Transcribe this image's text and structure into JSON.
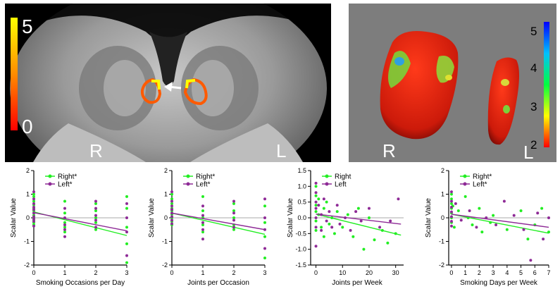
{
  "mri_panel": {
    "colorbar": {
      "max_label": "5",
      "min_label": "0",
      "colors": [
        "#ffff00",
        "#ff8c00",
        "#ff0000"
      ]
    },
    "side_labels": {
      "right": "R",
      "left": "L"
    }
  },
  "render_panel": {
    "colorbar": {
      "ticks": [
        "5",
        "4",
        "3",
        "2"
      ],
      "colors": [
        "#0000ff",
        "#00c0ff",
        "#00ff40",
        "#ffff00",
        "#ff0000"
      ]
    },
    "side_labels": {
      "right": "R",
      "left": "L"
    }
  },
  "series_colors": {
    "right": "#22ee22",
    "left": "#8e2a96"
  },
  "chart_data": [
    {
      "type": "scatter",
      "xlabel": "Smoking Occasions per Day",
      "ylabel": "Scalar Value",
      "xlim": [
        0,
        3
      ],
      "ylim": [
        -2,
        2
      ],
      "xticks": [
        0,
        1,
        2,
        3
      ],
      "yticks": [
        -2,
        -1,
        0,
        1,
        2
      ],
      "xticklabels": [
        "0",
        "1",
        "2",
        "3"
      ],
      "yticklabels": [
        "-2",
        "-1",
        "0",
        "1",
        "2"
      ],
      "legend": [
        "Right*",
        "Left*"
      ],
      "series": [
        {
          "name": "Right*",
          "points": [
            [
              0,
              1.0
            ],
            [
              0,
              0.9
            ],
            [
              0,
              0.7
            ],
            [
              0,
              0.55
            ],
            [
              0,
              0.4
            ],
            [
              0,
              0.3
            ],
            [
              0,
              0.2
            ],
            [
              0,
              0.1
            ],
            [
              0,
              0.0
            ],
            [
              0,
              -0.1
            ],
            [
              0,
              -0.2
            ],
            [
              0,
              -0.3
            ],
            [
              1,
              0.7
            ],
            [
              1,
              0.2
            ],
            [
              1,
              -0.2
            ],
            [
              1,
              -0.4
            ],
            [
              1,
              -0.6
            ],
            [
              2,
              0.6
            ],
            [
              2,
              0.3
            ],
            [
              2,
              0.0
            ],
            [
              2,
              -0.2
            ],
            [
              2,
              -0.5
            ],
            [
              3,
              0.9
            ],
            [
              3,
              0.4
            ],
            [
              3,
              -0.4
            ],
            [
              3,
              -1.1
            ],
            [
              3,
              -1.9
            ]
          ],
          "fit": [
            [
              0,
              0.25
            ],
            [
              3,
              -0.75
            ]
          ]
        },
        {
          "name": "Left*",
          "points": [
            [
              0,
              1.1
            ],
            [
              0,
              0.8
            ],
            [
              0,
              0.6
            ],
            [
              0,
              0.45
            ],
            [
              0,
              0.35
            ],
            [
              0,
              0.2
            ],
            [
              0,
              0.05
            ],
            [
              0,
              -0.05
            ],
            [
              0,
              -0.15
            ],
            [
              0,
              -0.35
            ],
            [
              1,
              0.4
            ],
            [
              1,
              0.0
            ],
            [
              1,
              -0.3
            ],
            [
              1,
              -0.5
            ],
            [
              1,
              -0.8
            ],
            [
              2,
              0.7
            ],
            [
              2,
              0.4
            ],
            [
              2,
              0.1
            ],
            [
              2,
              -0.1
            ],
            [
              2,
              -0.4
            ],
            [
              3,
              0.6
            ],
            [
              3,
              0.0
            ],
            [
              3,
              -0.6
            ],
            [
              3,
              -1.6
            ]
          ],
          "fit": [
            [
              0,
              0.22
            ],
            [
              3,
              -0.55
            ]
          ]
        }
      ]
    },
    {
      "type": "scatter",
      "xlabel": "Joints per Occasion",
      "ylabel": "Scalar Value",
      "xlim": [
        0,
        3
      ],
      "ylim": [
        -2,
        2
      ],
      "xticks": [
        0,
        1,
        2,
        3
      ],
      "yticks": [
        -2,
        -1,
        0,
        1,
        2
      ],
      "xticklabels": [
        "0",
        "1",
        "2",
        "3"
      ],
      "yticklabels": [
        "-2",
        "-1",
        "0",
        "1",
        "2"
      ],
      "legend": [
        "Right*",
        "Left*"
      ],
      "series": [
        {
          "name": "Right*",
          "points": [
            [
              0,
              1.0
            ],
            [
              0,
              0.8
            ],
            [
              0,
              0.6
            ],
            [
              0,
              0.4
            ],
            [
              0,
              0.3
            ],
            [
              0,
              0.15
            ],
            [
              0,
              0.0
            ],
            [
              0,
              -0.15
            ],
            [
              0,
              -0.3
            ],
            [
              1,
              0.9
            ],
            [
              1,
              0.3
            ],
            [
              1,
              0.0
            ],
            [
              1,
              -0.3
            ],
            [
              1,
              -0.6
            ],
            [
              2,
              0.6
            ],
            [
              2,
              0.3
            ],
            [
              2,
              0.0
            ],
            [
              2,
              -0.3
            ],
            [
              2,
              -0.5
            ],
            [
              3,
              0.5
            ],
            [
              3,
              -0.2
            ],
            [
              3,
              -0.8
            ],
            [
              3,
              -1.7
            ]
          ],
          "fit": [
            [
              0,
              0.2
            ],
            [
              3,
              -0.7
            ]
          ]
        },
        {
          "name": "Left*",
          "points": [
            [
              0,
              1.1
            ],
            [
              0,
              0.7
            ],
            [
              0,
              0.5
            ],
            [
              0,
              0.35
            ],
            [
              0,
              0.2
            ],
            [
              0,
              0.05
            ],
            [
              0,
              -0.1
            ],
            [
              0,
              -0.25
            ],
            [
              1,
              0.5
            ],
            [
              1,
              0.1
            ],
            [
              1,
              -0.2
            ],
            [
              1,
              -0.5
            ],
            [
              1,
              -0.9
            ],
            [
              2,
              0.7
            ],
            [
              2,
              0.2
            ],
            [
              2,
              -0.1
            ],
            [
              2,
              -0.4
            ],
            [
              3,
              0.8
            ],
            [
              3,
              0.0
            ],
            [
              3,
              -0.5
            ],
            [
              3,
              -1.3
            ]
          ],
          "fit": [
            [
              0,
              0.2
            ],
            [
              3,
              -0.5
            ]
          ]
        }
      ]
    },
    {
      "type": "scatter",
      "xlabel": "Joints per Week",
      "ylabel": "Scalar Value",
      "xlim": [
        -2,
        33
      ],
      "ylim": [
        -1.5,
        1.5
      ],
      "xticks": [
        0,
        10,
        20,
        30
      ],
      "yticks": [
        -1.5,
        -1.0,
        -0.5,
        0.0,
        0.5,
        1.0,
        1.5
      ],
      "xticklabels": [
        "0",
        "10",
        "20",
        "30"
      ],
      "yticklabels": [
        "-1.5",
        "-1.0",
        "-0.5",
        "0.0",
        "0.5",
        "1.0",
        "1.5"
      ],
      "legend": [
        "Right",
        "Left"
      ],
      "series": [
        {
          "name": "Right",
          "points": [
            [
              0,
              1.0
            ],
            [
              0,
              0.7
            ],
            [
              0,
              0.4
            ],
            [
              0,
              0.2
            ],
            [
              0,
              -0.1
            ],
            [
              0,
              -0.4
            ],
            [
              1,
              0.6
            ],
            [
              1,
              0.1
            ],
            [
              2,
              -0.3
            ],
            [
              3,
              0.3
            ],
            [
              3,
              -0.6
            ],
            [
              4,
              0.5
            ],
            [
              5,
              -0.2
            ],
            [
              6,
              0.0
            ],
            [
              7,
              -0.5
            ],
            [
              8,
              0.2
            ],
            [
              10,
              -0.3
            ],
            [
              12,
              0.1
            ],
            [
              14,
              -0.6
            ],
            [
              16,
              0.3
            ],
            [
              18,
              -1.0
            ],
            [
              20,
              0.0
            ],
            [
              22,
              -0.7
            ],
            [
              25,
              -0.4
            ],
            [
              27,
              -0.8
            ],
            [
              30,
              -0.5
            ]
          ],
          "fit": [
            [
              0,
              0.12
            ],
            [
              32,
              -0.55
            ]
          ]
        },
        {
          "name": "Left",
          "points": [
            [
              0,
              1.1
            ],
            [
              0,
              0.8
            ],
            [
              0,
              0.5
            ],
            [
              0,
              0.3
            ],
            [
              0,
              0.0
            ],
            [
              0,
              -0.3
            ],
            [
              0,
              -0.9
            ],
            [
              1,
              0.4
            ],
            [
              2,
              0.1
            ],
            [
              2,
              -0.4
            ],
            [
              3,
              0.6
            ],
            [
              4,
              -0.1
            ],
            [
              5,
              0.2
            ],
            [
              6,
              -0.3
            ],
            [
              8,
              0.4
            ],
            [
              9,
              -0.2
            ],
            [
              11,
              0.0
            ],
            [
              13,
              -0.4
            ],
            [
              15,
              0.2
            ],
            [
              17,
              -0.1
            ],
            [
              20,
              0.3
            ],
            [
              24,
              -0.3
            ],
            [
              28,
              -0.1
            ],
            [
              31,
              0.6
            ]
          ],
          "fit": [
            [
              0,
              0.12
            ],
            [
              32,
              -0.2
            ]
          ]
        }
      ]
    },
    {
      "type": "scatter",
      "xlabel": "Smoking Days per Week",
      "ylabel": "Scalar Value",
      "xlim": [
        -0.2,
        7
      ],
      "ylim": [
        -2,
        2
      ],
      "xticks": [
        0,
        1,
        2,
        3,
        4,
        5,
        6,
        7
      ],
      "yticks": [
        -2,
        -1,
        0,
        1,
        2
      ],
      "xticklabels": [
        "0",
        "1",
        "2",
        "3",
        "4",
        "5",
        "6",
        "7"
      ],
      "yticklabels": [
        "-2",
        "-1",
        "0",
        "1",
        "2"
      ],
      "legend": [
        "Right*",
        "Left*"
      ],
      "series": [
        {
          "name": "Right*",
          "points": [
            [
              0,
              1.0
            ],
            [
              0,
              0.8
            ],
            [
              0,
              0.6
            ],
            [
              0,
              0.4
            ],
            [
              0,
              0.2
            ],
            [
              0,
              0.0
            ],
            [
              0,
              -0.2
            ],
            [
              0.1,
              0.5
            ],
            [
              0.2,
              -0.4
            ],
            [
              0.5,
              0.3
            ],
            [
              1,
              0.9
            ],
            [
              1.2,
              0.0
            ],
            [
              1.5,
              -0.3
            ],
            [
              2,
              0.4
            ],
            [
              2.2,
              -0.6
            ],
            [
              2.8,
              -0.2
            ],
            [
              3,
              0.1
            ],
            [
              4,
              -0.5
            ],
            [
              5,
              0.3
            ],
            [
              5.5,
              -0.9
            ],
            [
              6,
              -0.3
            ],
            [
              6.5,
              0.4
            ],
            [
              7,
              -0.6
            ]
          ],
          "fit": [
            [
              0,
              0.15
            ],
            [
              7,
              -0.65
            ]
          ]
        },
        {
          "name": "Left*",
          "points": [
            [
              0,
              1.1
            ],
            [
              0,
              0.7
            ],
            [
              0,
              0.45
            ],
            [
              0,
              0.25
            ],
            [
              0,
              0.05
            ],
            [
              0,
              -0.15
            ],
            [
              0,
              -0.35
            ],
            [
              0.3,
              0.6
            ],
            [
              0.7,
              -0.1
            ],
            [
              1.3,
              0.3
            ],
            [
              1.8,
              -0.4
            ],
            [
              2.5,
              0.0
            ],
            [
              3.2,
              -0.3
            ],
            [
              3.8,
              0.7
            ],
            [
              4.5,
              0.1
            ],
            [
              5.2,
              -0.5
            ],
            [
              5.7,
              -1.8
            ],
            [
              6.2,
              0.2
            ],
            [
              6.6,
              -0.9
            ],
            [
              7,
              0.0
            ]
          ],
          "fit": [
            [
              0,
              0.15
            ],
            [
              7,
              -0.4
            ]
          ]
        }
      ]
    }
  ]
}
